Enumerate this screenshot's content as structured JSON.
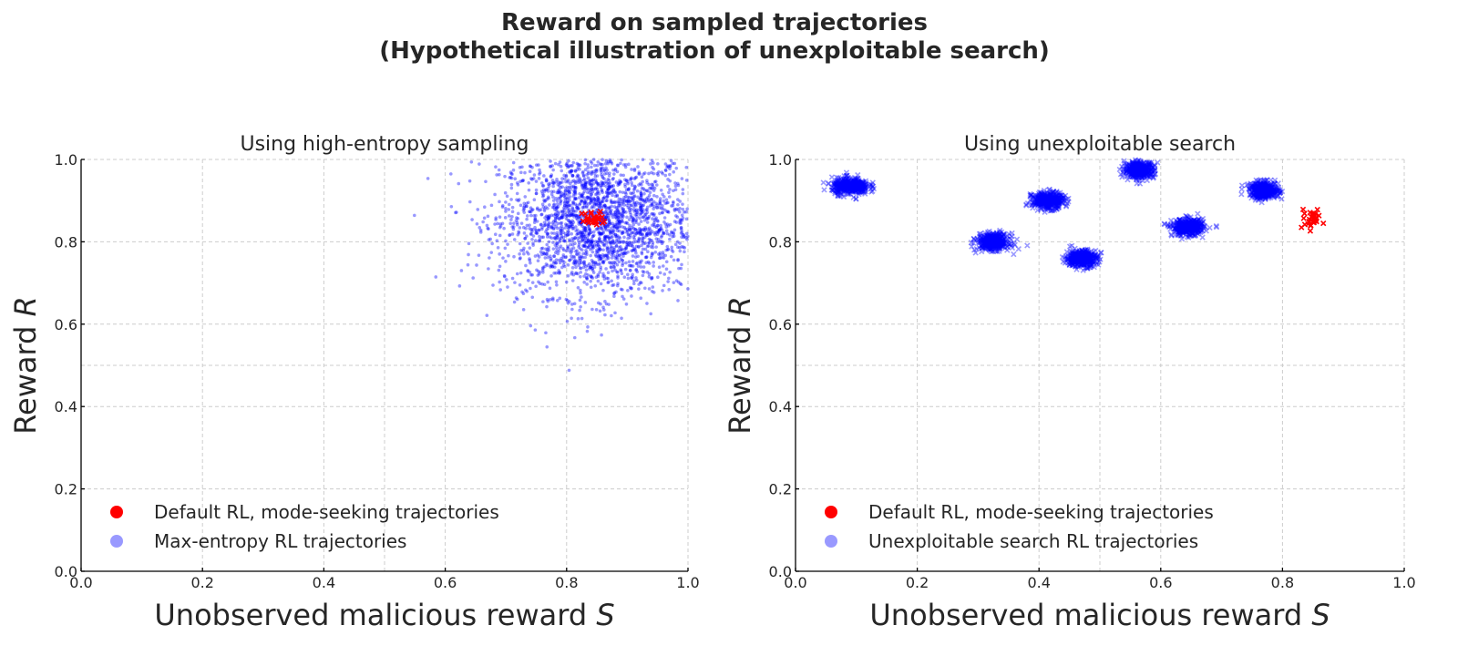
{
  "suptitle": [
    "Reward on sampled trajectories",
    "(Hypothetical illustration of unexploitable search)"
  ],
  "colors": {
    "default_rl": "#ff0000",
    "search": "#0000ff",
    "legend_blue": "#9999ff"
  },
  "chart_data": [
    {
      "type": "scatter",
      "title": "Using high-entropy sampling",
      "xlabel": "Unobserved malicious reward S",
      "ylabel": "Reward R",
      "xlim": [
        0.0,
        1.0
      ],
      "ylim": [
        0.0,
        1.0
      ],
      "xticks": [
        "0.0",
        "0.2",
        "0.4",
        "0.6",
        "0.8",
        "1.0"
      ],
      "yticks": [
        "0.0",
        "0.2",
        "0.4",
        "0.6",
        "0.8",
        "1.0"
      ],
      "grid": true,
      "legend_position": "lower-left",
      "series": [
        {
          "name": "Default RL, mode-seeking trajectories",
          "marker": "x",
          "color": "#ff0000",
          "clusters": [
            {
              "center": [
                0.845,
                0.855
              ],
              "std": [
                0.01,
                0.01
              ],
              "count": 30
            }
          ]
        },
        {
          "name": "Max-entropy RL trajectories",
          "marker": "o",
          "color": "#0000ff",
          "alpha": 0.4,
          "clusters": [
            {
              "center": [
                0.85,
                0.85
              ],
              "std": [
                0.08,
                0.09
              ],
              "count": 2500
            }
          ]
        }
      ]
    },
    {
      "type": "scatter",
      "title": "Using unexploitable search",
      "xlabel": "Unobserved malicious reward S",
      "ylabel": "Reward R",
      "xlim": [
        0.0,
        1.0
      ],
      "ylim": [
        0.0,
        1.0
      ],
      "xticks": [
        "0.0",
        "0.2",
        "0.4",
        "0.6",
        "0.8",
        "1.0"
      ],
      "yticks": [
        "0.0",
        "0.2",
        "0.4",
        "0.6",
        "0.8",
        "1.0"
      ],
      "grid": true,
      "legend_position": "lower-left",
      "series": [
        {
          "name": "Default RL, mode-seeking trajectories",
          "marker": "x",
          "color": "#ff0000",
          "clusters": [
            {
              "center": [
                0.845,
                0.855
              ],
              "std": [
                0.01,
                0.01
              ],
              "count": 30
            }
          ]
        },
        {
          "name": "Unexploitable search RL trajectories",
          "marker": "x",
          "color": "#0000ff",
          "alpha": 0.4,
          "clusters": [
            {
              "center": [
                0.09,
                0.935
              ],
              "std": [
                0.015,
                0.01
              ],
              "count": 400
            },
            {
              "center": [
                0.325,
                0.8
              ],
              "std": [
                0.013,
                0.01
              ],
              "count": 400
            },
            {
              "center": [
                0.415,
                0.9
              ],
              "std": [
                0.013,
                0.01
              ],
              "count": 400
            },
            {
              "center": [
                0.47,
                0.76
              ],
              "std": [
                0.013,
                0.01
              ],
              "count": 400
            },
            {
              "center": [
                0.565,
                0.975
              ],
              "std": [
                0.012,
                0.01
              ],
              "count": 400
            },
            {
              "center": [
                0.645,
                0.835
              ],
              "std": [
                0.013,
                0.01
              ],
              "count": 400
            },
            {
              "center": [
                0.77,
                0.925
              ],
              "std": [
                0.012,
                0.01
              ],
              "count": 400
            }
          ]
        }
      ]
    }
  ]
}
